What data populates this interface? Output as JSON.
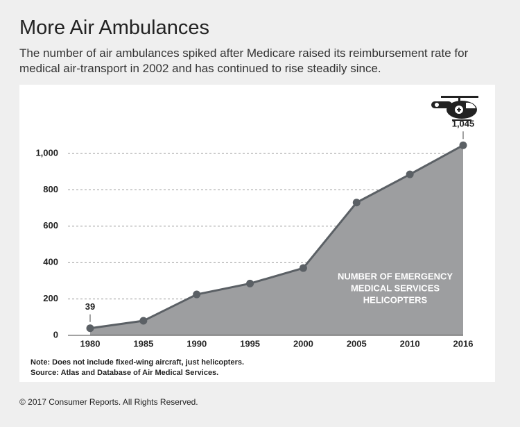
{
  "chart_data": {
    "type": "area",
    "title": "More Air Ambulances",
    "subtitle": "The number of air ambulances spiked after Medicare raised its reimbursement rate for medical air-transport in 2002 and has continued to rise steadily since.",
    "categories": [
      "1980",
      "1985",
      "1990",
      "1995",
      "2000",
      "2005",
      "2010",
      "2016"
    ],
    "values": [
      39,
      80,
      225,
      285,
      370,
      730,
      885,
      1045
    ],
    "value_labels": [
      "39",
      null,
      null,
      null,
      null,
      null,
      null,
      "1,045"
    ],
    "area_label": [
      "NUMBER OF EMERGENCY",
      "MEDICAL SERVICES",
      "HELICOPTERS"
    ],
    "fill_color": "#9d9ea0",
    "line_color": "#5b6065",
    "ylim": [
      0,
      1100
    ],
    "yticks": [
      0,
      200,
      400,
      600,
      800,
      {
        "value": 1000,
        "label": "1,000"
      }
    ],
    "grid": true,
    "notes": [
      "Note: Does not include fixed-wing aircraft, just helicopters.",
      "Source: Atlas and Database of Air Medical Services."
    ],
    "copyright": "© 2017 Consumer Reports. All Rights Reserved."
  }
}
